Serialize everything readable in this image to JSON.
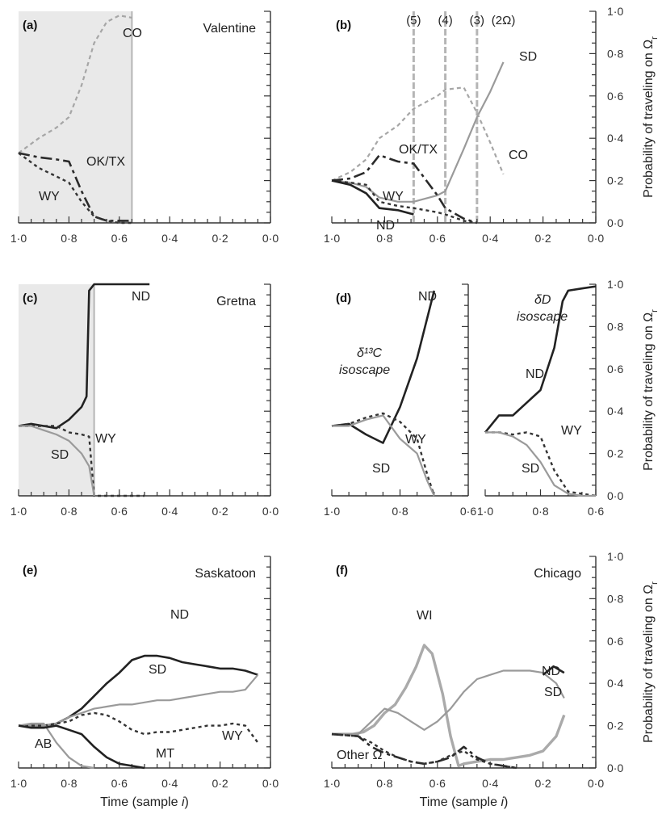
{
  "chart_data": [
    {
      "panel": "a",
      "letter": "(a)",
      "city": "Valentine",
      "type": "line",
      "xlim": [
        1.0,
        0.0
      ],
      "ylim": [
        0.0,
        1.0
      ],
      "xticks": [
        "1·0",
        "0·8",
        "0·6",
        "0·4",
        "0·2",
        "0·0"
      ],
      "shaded_to_x": 0.55,
      "vline_x": 0.55,
      "series": [
        {
          "name": "CO",
          "style": "dotted-light",
          "x": [
            1.0,
            0.92,
            0.85,
            0.8,
            0.75,
            0.7,
            0.65,
            0.6,
            0.55
          ],
          "y": [
            0.33,
            0.4,
            0.45,
            0.5,
            0.65,
            0.85,
            0.95,
            0.98,
            0.97
          ]
        },
        {
          "name": "OK/TX",
          "style": "dashdot-dark",
          "x": [
            1.0,
            0.92,
            0.85,
            0.8,
            0.75,
            0.7,
            0.65,
            0.6,
            0.55
          ],
          "y": [
            0.33,
            0.31,
            0.3,
            0.29,
            0.15,
            0.03,
            0.01,
            0.01,
            0.01
          ]
        },
        {
          "name": "WY",
          "style": "dotted-dark",
          "x": [
            1.0,
            0.92,
            0.85,
            0.8,
            0.75,
            0.7,
            0.65,
            0.6,
            0.55
          ],
          "y": [
            0.33,
            0.26,
            0.22,
            0.19,
            0.1,
            0.03,
            0.01,
            0.0,
            0.0
          ]
        }
      ]
    },
    {
      "panel": "b",
      "letter": "(b)",
      "city": "",
      "type": "line",
      "xlim": [
        1.0,
        0.0
      ],
      "ylim": [
        0.0,
        1.0
      ],
      "xticks": [
        "1·0",
        "0·8",
        "0·6",
        "0·4",
        "0·2",
        "0·0"
      ],
      "yticks": [
        "0·0",
        "0·2",
        "0·4",
        "0·6",
        "0·8",
        "1·0"
      ],
      "ylabel": "Probability of traveling on Ω",
      "ylabel_sub": "r",
      "regions": [
        {
          "label": "(5)",
          "x": 0.69
        },
        {
          "label": "(4)",
          "x": 0.57
        },
        {
          "label": "(3)",
          "x": 0.45
        },
        {
          "label": "(2Ω)",
          "x": 0.35
        }
      ],
      "vlines_x": [
        0.69,
        0.57,
        0.45
      ],
      "series": [
        {
          "name": "SD",
          "style": "solid-light",
          "x": [
            1.0,
            0.93,
            0.87,
            0.82,
            0.75,
            0.69,
            0.6,
            0.57,
            0.5,
            0.45,
            0.4,
            0.35
          ],
          "y": [
            0.2,
            0.19,
            0.17,
            0.12,
            0.1,
            0.1,
            0.13,
            0.15,
            0.35,
            0.5,
            0.62,
            0.76
          ]
        },
        {
          "name": "CO",
          "style": "dotted-light",
          "x": [
            1.0,
            0.93,
            0.87,
            0.82,
            0.75,
            0.69,
            0.6,
            0.57,
            0.5,
            0.45,
            0.4,
            0.35
          ],
          "y": [
            0.2,
            0.24,
            0.3,
            0.4,
            0.46,
            0.54,
            0.6,
            0.63,
            0.64,
            0.52,
            0.38,
            0.23
          ]
        },
        {
          "name": "OK/TX",
          "style": "dashdot-dark",
          "x": [
            1.0,
            0.93,
            0.87,
            0.82,
            0.75,
            0.69,
            0.6,
            0.57,
            0.5,
            0.45
          ],
          "y": [
            0.2,
            0.21,
            0.24,
            0.32,
            0.29,
            0.28,
            0.13,
            0.07,
            0.02,
            0.0
          ]
        },
        {
          "name": "WY",
          "style": "dotted-dark",
          "x": [
            1.0,
            0.93,
            0.87,
            0.82,
            0.75,
            0.69,
            0.6,
            0.57,
            0.5,
            0.45
          ],
          "y": [
            0.2,
            0.19,
            0.18,
            0.1,
            0.08,
            0.07,
            0.05,
            0.04,
            0.01,
            0.0
          ]
        },
        {
          "name": "ND",
          "style": "solid-dark",
          "x": [
            1.0,
            0.93,
            0.87,
            0.82,
            0.75,
            0.69
          ],
          "y": [
            0.2,
            0.18,
            0.14,
            0.07,
            0.06,
            0.04
          ]
        }
      ]
    },
    {
      "panel": "c",
      "letter": "(c)",
      "city": "Gretna",
      "type": "line",
      "xlim": [
        1.0,
        0.0
      ],
      "ylim": [
        0.0,
        1.0
      ],
      "xticks": [
        "1·0",
        "0·8",
        "0·6",
        "0·4",
        "0·2",
        "0·0"
      ],
      "shaded_to_x": 0.7,
      "vline_x": 0.7,
      "series": [
        {
          "name": "ND",
          "style": "solid-dark",
          "x": [
            1.0,
            0.95,
            0.9,
            0.85,
            0.8,
            0.75,
            0.73,
            0.72,
            0.7,
            0.65,
            0.6,
            0.55,
            0.48
          ],
          "y": [
            0.33,
            0.34,
            0.33,
            0.32,
            0.36,
            0.42,
            0.47,
            0.97,
            1.0,
            1.0,
            1.0,
            1.0,
            1.0
          ]
        },
        {
          "name": "WY",
          "style": "dotted-dark",
          "x": [
            1.0,
            0.95,
            0.9,
            0.85,
            0.8,
            0.75,
            0.72,
            0.7,
            0.6,
            0.5
          ],
          "y": [
            0.33,
            0.33,
            0.33,
            0.33,
            0.3,
            0.29,
            0.28,
            0.0,
            0.0,
            0.0
          ]
        },
        {
          "name": "SD",
          "style": "solid-light",
          "x": [
            1.0,
            0.95,
            0.9,
            0.85,
            0.8,
            0.75,
            0.72,
            0.7
          ],
          "y": [
            0.33,
            0.33,
            0.31,
            0.29,
            0.26,
            0.2,
            0.14,
            0.0
          ]
        }
      ]
    },
    {
      "panel": "d1",
      "letter": "(d)",
      "city": "",
      "type": "line",
      "xlim": [
        1.0,
        0.6
      ],
      "ylim": [
        0.0,
        1.0
      ],
      "xticks": [
        "1·0",
        "0·8",
        "0·6"
      ],
      "annotation": [
        "δ¹³C",
        "isoscape"
      ],
      "series": [
        {
          "name": "ND",
          "style": "solid-dark",
          "x": [
            1.0,
            0.95,
            0.9,
            0.85,
            0.8,
            0.75,
            0.7
          ],
          "y": [
            0.33,
            0.34,
            0.29,
            0.25,
            0.42,
            0.65,
            0.97
          ]
        },
        {
          "name": "WY",
          "style": "dotted-dark",
          "x": [
            1.0,
            0.95,
            0.9,
            0.85,
            0.8,
            0.75,
            0.72,
            0.7
          ],
          "y": [
            0.33,
            0.34,
            0.37,
            0.39,
            0.35,
            0.27,
            0.1,
            0.0
          ]
        },
        {
          "name": "SD",
          "style": "solid-light",
          "x": [
            1.0,
            0.95,
            0.9,
            0.85,
            0.8,
            0.75,
            0.72,
            0.7
          ],
          "y": [
            0.33,
            0.33,
            0.36,
            0.38,
            0.27,
            0.2,
            0.07,
            0.0
          ]
        }
      ]
    },
    {
      "panel": "d2",
      "letter": "",
      "city": "",
      "type": "line",
      "xlim": [
        1.0,
        0.6
      ],
      "ylim": [
        0.0,
        1.0
      ],
      "xticks": [
        "1·0",
        "0·8",
        "0·6"
      ],
      "yticks": [
        "0·0",
        "0·2",
        "0·4",
        "0·6",
        "0·8",
        "1·0"
      ],
      "ylabel": "Probability of traveling on Ω",
      "ylabel_sub": "r",
      "annotation": [
        "δD",
        "isoscape"
      ],
      "series": [
        {
          "name": "ND",
          "style": "solid-dark",
          "x": [
            1.0,
            0.95,
            0.9,
            0.85,
            0.8,
            0.75,
            0.72,
            0.7,
            0.65,
            0.6
          ],
          "y": [
            0.3,
            0.38,
            0.38,
            0.44,
            0.5,
            0.7,
            0.92,
            0.97,
            0.98,
            0.99
          ]
        },
        {
          "name": "WY",
          "style": "dotted-dark",
          "x": [
            1.0,
            0.95,
            0.9,
            0.85,
            0.8,
            0.75,
            0.7,
            0.65,
            0.6
          ],
          "y": [
            0.3,
            0.3,
            0.29,
            0.3,
            0.28,
            0.12,
            0.02,
            0.01,
            0.0
          ]
        },
        {
          "name": "SD",
          "style": "solid-light",
          "x": [
            1.0,
            0.95,
            0.9,
            0.85,
            0.8,
            0.75,
            0.7,
            0.65,
            0.6
          ],
          "y": [
            0.3,
            0.3,
            0.28,
            0.24,
            0.16,
            0.05,
            0.01,
            0.0,
            0.0
          ]
        }
      ]
    },
    {
      "panel": "e",
      "letter": "(e)",
      "city": "Saskatoon",
      "type": "line",
      "xlim": [
        1.0,
        0.0
      ],
      "ylim": [
        0.0,
        1.0
      ],
      "xticks": [
        "1·0",
        "0·8",
        "0·6",
        "0·4",
        "0·2",
        "0·0"
      ],
      "xlabel": "Time (sample",
      "xlabel_var": "i",
      "series": [
        {
          "name": "ND",
          "style": "solid-dark",
          "x": [
            1.0,
            0.95,
            0.9,
            0.85,
            0.8,
            0.75,
            0.7,
            0.65,
            0.6,
            0.55,
            0.5,
            0.45,
            0.4,
            0.35,
            0.3,
            0.25,
            0.2,
            0.15,
            0.1,
            0.05
          ],
          "y": [
            0.2,
            0.2,
            0.2,
            0.21,
            0.24,
            0.28,
            0.34,
            0.4,
            0.45,
            0.51,
            0.53,
            0.53,
            0.52,
            0.5,
            0.49,
            0.48,
            0.47,
            0.47,
            0.46,
            0.44
          ]
        },
        {
          "name": "SD",
          "style": "solid-light",
          "x": [
            1.0,
            0.95,
            0.9,
            0.85,
            0.8,
            0.75,
            0.7,
            0.65,
            0.6,
            0.55,
            0.5,
            0.45,
            0.4,
            0.35,
            0.3,
            0.25,
            0.2,
            0.15,
            0.1,
            0.05
          ],
          "y": [
            0.2,
            0.2,
            0.2,
            0.21,
            0.24,
            0.26,
            0.28,
            0.29,
            0.3,
            0.3,
            0.31,
            0.32,
            0.32,
            0.33,
            0.34,
            0.35,
            0.36,
            0.36,
            0.37,
            0.44
          ]
        },
        {
          "name": "WY",
          "style": "dotted-dark",
          "x": [
            1.0,
            0.95,
            0.9,
            0.85,
            0.8,
            0.75,
            0.7,
            0.65,
            0.6,
            0.55,
            0.5,
            0.45,
            0.4,
            0.35,
            0.3,
            0.25,
            0.2,
            0.15,
            0.1,
            0.05
          ],
          "y": [
            0.2,
            0.2,
            0.2,
            0.21,
            0.22,
            0.25,
            0.26,
            0.25,
            0.22,
            0.18,
            0.16,
            0.17,
            0.17,
            0.18,
            0.19,
            0.2,
            0.2,
            0.21,
            0.2,
            0.12
          ]
        },
        {
          "name": "AB",
          "style": "solid-light",
          "x": [
            1.0,
            0.95,
            0.9,
            0.85,
            0.8,
            0.75,
            0.7
          ],
          "y": [
            0.2,
            0.21,
            0.21,
            0.12,
            0.05,
            0.01,
            0.0
          ]
        },
        {
          "name": "MT",
          "style": "solid-dark",
          "x": [
            1.0,
            0.95,
            0.9,
            0.85,
            0.8,
            0.75,
            0.7,
            0.65,
            0.6,
            0.55,
            0.5
          ],
          "y": [
            0.2,
            0.19,
            0.19,
            0.2,
            0.18,
            0.16,
            0.1,
            0.05,
            0.02,
            0.01,
            0.0
          ]
        }
      ]
    },
    {
      "panel": "f",
      "letter": "(f)",
      "city": "Chicago",
      "type": "line",
      "xlim": [
        1.0,
        0.0
      ],
      "ylim": [
        0.0,
        1.0
      ],
      "xticks": [
        "1·0",
        "0·8",
        "0·6",
        "0·4",
        "0·2",
        "0·0"
      ],
      "yticks": [
        "0·0",
        "0·2",
        "0·4",
        "0·6",
        "0·8",
        "1·0"
      ],
      "ylabel": "Probability of traveling on Ω",
      "ylabel_sub": "r",
      "xlabel": "Time (sample",
      "xlabel_var": "i",
      "other_label": "Other Ω",
      "series": [
        {
          "name": "WI",
          "style": "solid-light-thick",
          "x": [
            1.0,
            0.92,
            0.88,
            0.84,
            0.8,
            0.76,
            0.72,
            0.68,
            0.65,
            0.62,
            0.58,
            0.55,
            0.52,
            0.5,
            0.45,
            0.4,
            0.35,
            0.3,
            0.25,
            0.2,
            0.15,
            0.12
          ],
          "y": [
            0.16,
            0.16,
            0.17,
            0.2,
            0.26,
            0.3,
            0.38,
            0.48,
            0.58,
            0.54,
            0.35,
            0.15,
            0.01,
            0.02,
            0.03,
            0.04,
            0.04,
            0.05,
            0.06,
            0.08,
            0.15,
            0.25
          ]
        },
        {
          "name": "SD",
          "style": "solid-light",
          "x": [
            1.0,
            0.9,
            0.85,
            0.8,
            0.75,
            0.7,
            0.65,
            0.6,
            0.55,
            0.5,
            0.45,
            0.4,
            0.35,
            0.3,
            0.25,
            0.2,
            0.15,
            0.12
          ],
          "y": [
            0.16,
            0.16,
            0.22,
            0.28,
            0.26,
            0.22,
            0.18,
            0.22,
            0.28,
            0.36,
            0.42,
            0.44,
            0.46,
            0.46,
            0.46,
            0.45,
            0.4,
            0.33
          ]
        },
        {
          "name": "ND",
          "style": "solid-dark",
          "x": [
            0.2,
            0.16,
            0.12
          ],
          "y": [
            0.44,
            0.48,
            0.45
          ]
        },
        {
          "name": "Other Ω",
          "style": "dashdot-dark",
          "x": [
            1.0,
            0.9,
            0.85,
            0.8,
            0.75,
            0.7,
            0.65,
            0.6,
            0.55,
            0.5,
            0.45,
            0.4,
            0.35,
            0.3
          ],
          "y": [
            0.16,
            0.15,
            0.1,
            0.07,
            0.05,
            0.03,
            0.02,
            0.03,
            0.05,
            0.1,
            0.05,
            0.02,
            0.01,
            0.0
          ]
        },
        {
          "name": "",
          "style": "dotted-dark",
          "x": [
            1.0,
            0.9,
            0.85,
            0.8,
            0.75,
            0.7,
            0.65,
            0.6,
            0.55,
            0.5,
            0.45,
            0.4,
            0.35,
            0.3
          ],
          "y": [
            0.16,
            0.15,
            0.12,
            0.08,
            0.05,
            0.03,
            0.02,
            0.03,
            0.06,
            0.08,
            0.04,
            0.02,
            0.01,
            0.0
          ]
        }
      ]
    }
  ]
}
